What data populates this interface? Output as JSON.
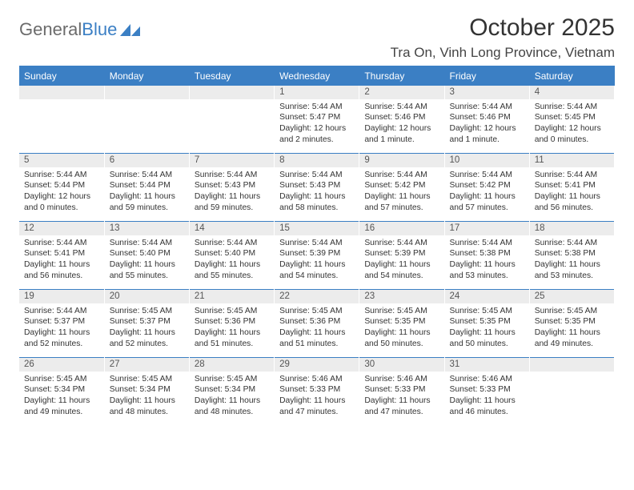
{
  "logo": {
    "word1": "General",
    "word2": "Blue"
  },
  "title": "October 2025",
  "location": "Tra On, Vinh Long Province, Vietnam",
  "colors": {
    "accent": "#3b7fc4",
    "header_bg": "#3b7fc4",
    "header_text": "#ffffff",
    "daynum_bg": "#ececec",
    "daynum_text": "#555555",
    "body_text": "#333333",
    "background": "#ffffff"
  },
  "daysOfWeek": [
    "Sunday",
    "Monday",
    "Tuesday",
    "Wednesday",
    "Thursday",
    "Friday",
    "Saturday"
  ],
  "weeks": [
    [
      null,
      null,
      null,
      {
        "n": "1",
        "sr": "5:44 AM",
        "ss": "5:47 PM",
        "dl": "12 hours and 2 minutes."
      },
      {
        "n": "2",
        "sr": "5:44 AM",
        "ss": "5:46 PM",
        "dl": "12 hours and 1 minute."
      },
      {
        "n": "3",
        "sr": "5:44 AM",
        "ss": "5:46 PM",
        "dl": "12 hours and 1 minute."
      },
      {
        "n": "4",
        "sr": "5:44 AM",
        "ss": "5:45 PM",
        "dl": "12 hours and 0 minutes."
      }
    ],
    [
      {
        "n": "5",
        "sr": "5:44 AM",
        "ss": "5:44 PM",
        "dl": "12 hours and 0 minutes."
      },
      {
        "n": "6",
        "sr": "5:44 AM",
        "ss": "5:44 PM",
        "dl": "11 hours and 59 minutes."
      },
      {
        "n": "7",
        "sr": "5:44 AM",
        "ss": "5:43 PM",
        "dl": "11 hours and 59 minutes."
      },
      {
        "n": "8",
        "sr": "5:44 AM",
        "ss": "5:43 PM",
        "dl": "11 hours and 58 minutes."
      },
      {
        "n": "9",
        "sr": "5:44 AM",
        "ss": "5:42 PM",
        "dl": "11 hours and 57 minutes."
      },
      {
        "n": "10",
        "sr": "5:44 AM",
        "ss": "5:42 PM",
        "dl": "11 hours and 57 minutes."
      },
      {
        "n": "11",
        "sr": "5:44 AM",
        "ss": "5:41 PM",
        "dl": "11 hours and 56 minutes."
      }
    ],
    [
      {
        "n": "12",
        "sr": "5:44 AM",
        "ss": "5:41 PM",
        "dl": "11 hours and 56 minutes."
      },
      {
        "n": "13",
        "sr": "5:44 AM",
        "ss": "5:40 PM",
        "dl": "11 hours and 55 minutes."
      },
      {
        "n": "14",
        "sr": "5:44 AM",
        "ss": "5:40 PM",
        "dl": "11 hours and 55 minutes."
      },
      {
        "n": "15",
        "sr": "5:44 AM",
        "ss": "5:39 PM",
        "dl": "11 hours and 54 minutes."
      },
      {
        "n": "16",
        "sr": "5:44 AM",
        "ss": "5:39 PM",
        "dl": "11 hours and 54 minutes."
      },
      {
        "n": "17",
        "sr": "5:44 AM",
        "ss": "5:38 PM",
        "dl": "11 hours and 53 minutes."
      },
      {
        "n": "18",
        "sr": "5:44 AM",
        "ss": "5:38 PM",
        "dl": "11 hours and 53 minutes."
      }
    ],
    [
      {
        "n": "19",
        "sr": "5:44 AM",
        "ss": "5:37 PM",
        "dl": "11 hours and 52 minutes."
      },
      {
        "n": "20",
        "sr": "5:45 AM",
        "ss": "5:37 PM",
        "dl": "11 hours and 52 minutes."
      },
      {
        "n": "21",
        "sr": "5:45 AM",
        "ss": "5:36 PM",
        "dl": "11 hours and 51 minutes."
      },
      {
        "n": "22",
        "sr": "5:45 AM",
        "ss": "5:36 PM",
        "dl": "11 hours and 51 minutes."
      },
      {
        "n": "23",
        "sr": "5:45 AM",
        "ss": "5:35 PM",
        "dl": "11 hours and 50 minutes."
      },
      {
        "n": "24",
        "sr": "5:45 AM",
        "ss": "5:35 PM",
        "dl": "11 hours and 50 minutes."
      },
      {
        "n": "25",
        "sr": "5:45 AM",
        "ss": "5:35 PM",
        "dl": "11 hours and 49 minutes."
      }
    ],
    [
      {
        "n": "26",
        "sr": "5:45 AM",
        "ss": "5:34 PM",
        "dl": "11 hours and 49 minutes."
      },
      {
        "n": "27",
        "sr": "5:45 AM",
        "ss": "5:34 PM",
        "dl": "11 hours and 48 minutes."
      },
      {
        "n": "28",
        "sr": "5:45 AM",
        "ss": "5:34 PM",
        "dl": "11 hours and 48 minutes."
      },
      {
        "n": "29",
        "sr": "5:46 AM",
        "ss": "5:33 PM",
        "dl": "11 hours and 47 minutes."
      },
      {
        "n": "30",
        "sr": "5:46 AM",
        "ss": "5:33 PM",
        "dl": "11 hours and 47 minutes."
      },
      {
        "n": "31",
        "sr": "5:46 AM",
        "ss": "5:33 PM",
        "dl": "11 hours and 46 minutes."
      },
      null
    ]
  ],
  "labels": {
    "sunrise": "Sunrise:",
    "sunset": "Sunset:",
    "daylight": "Daylight:"
  }
}
